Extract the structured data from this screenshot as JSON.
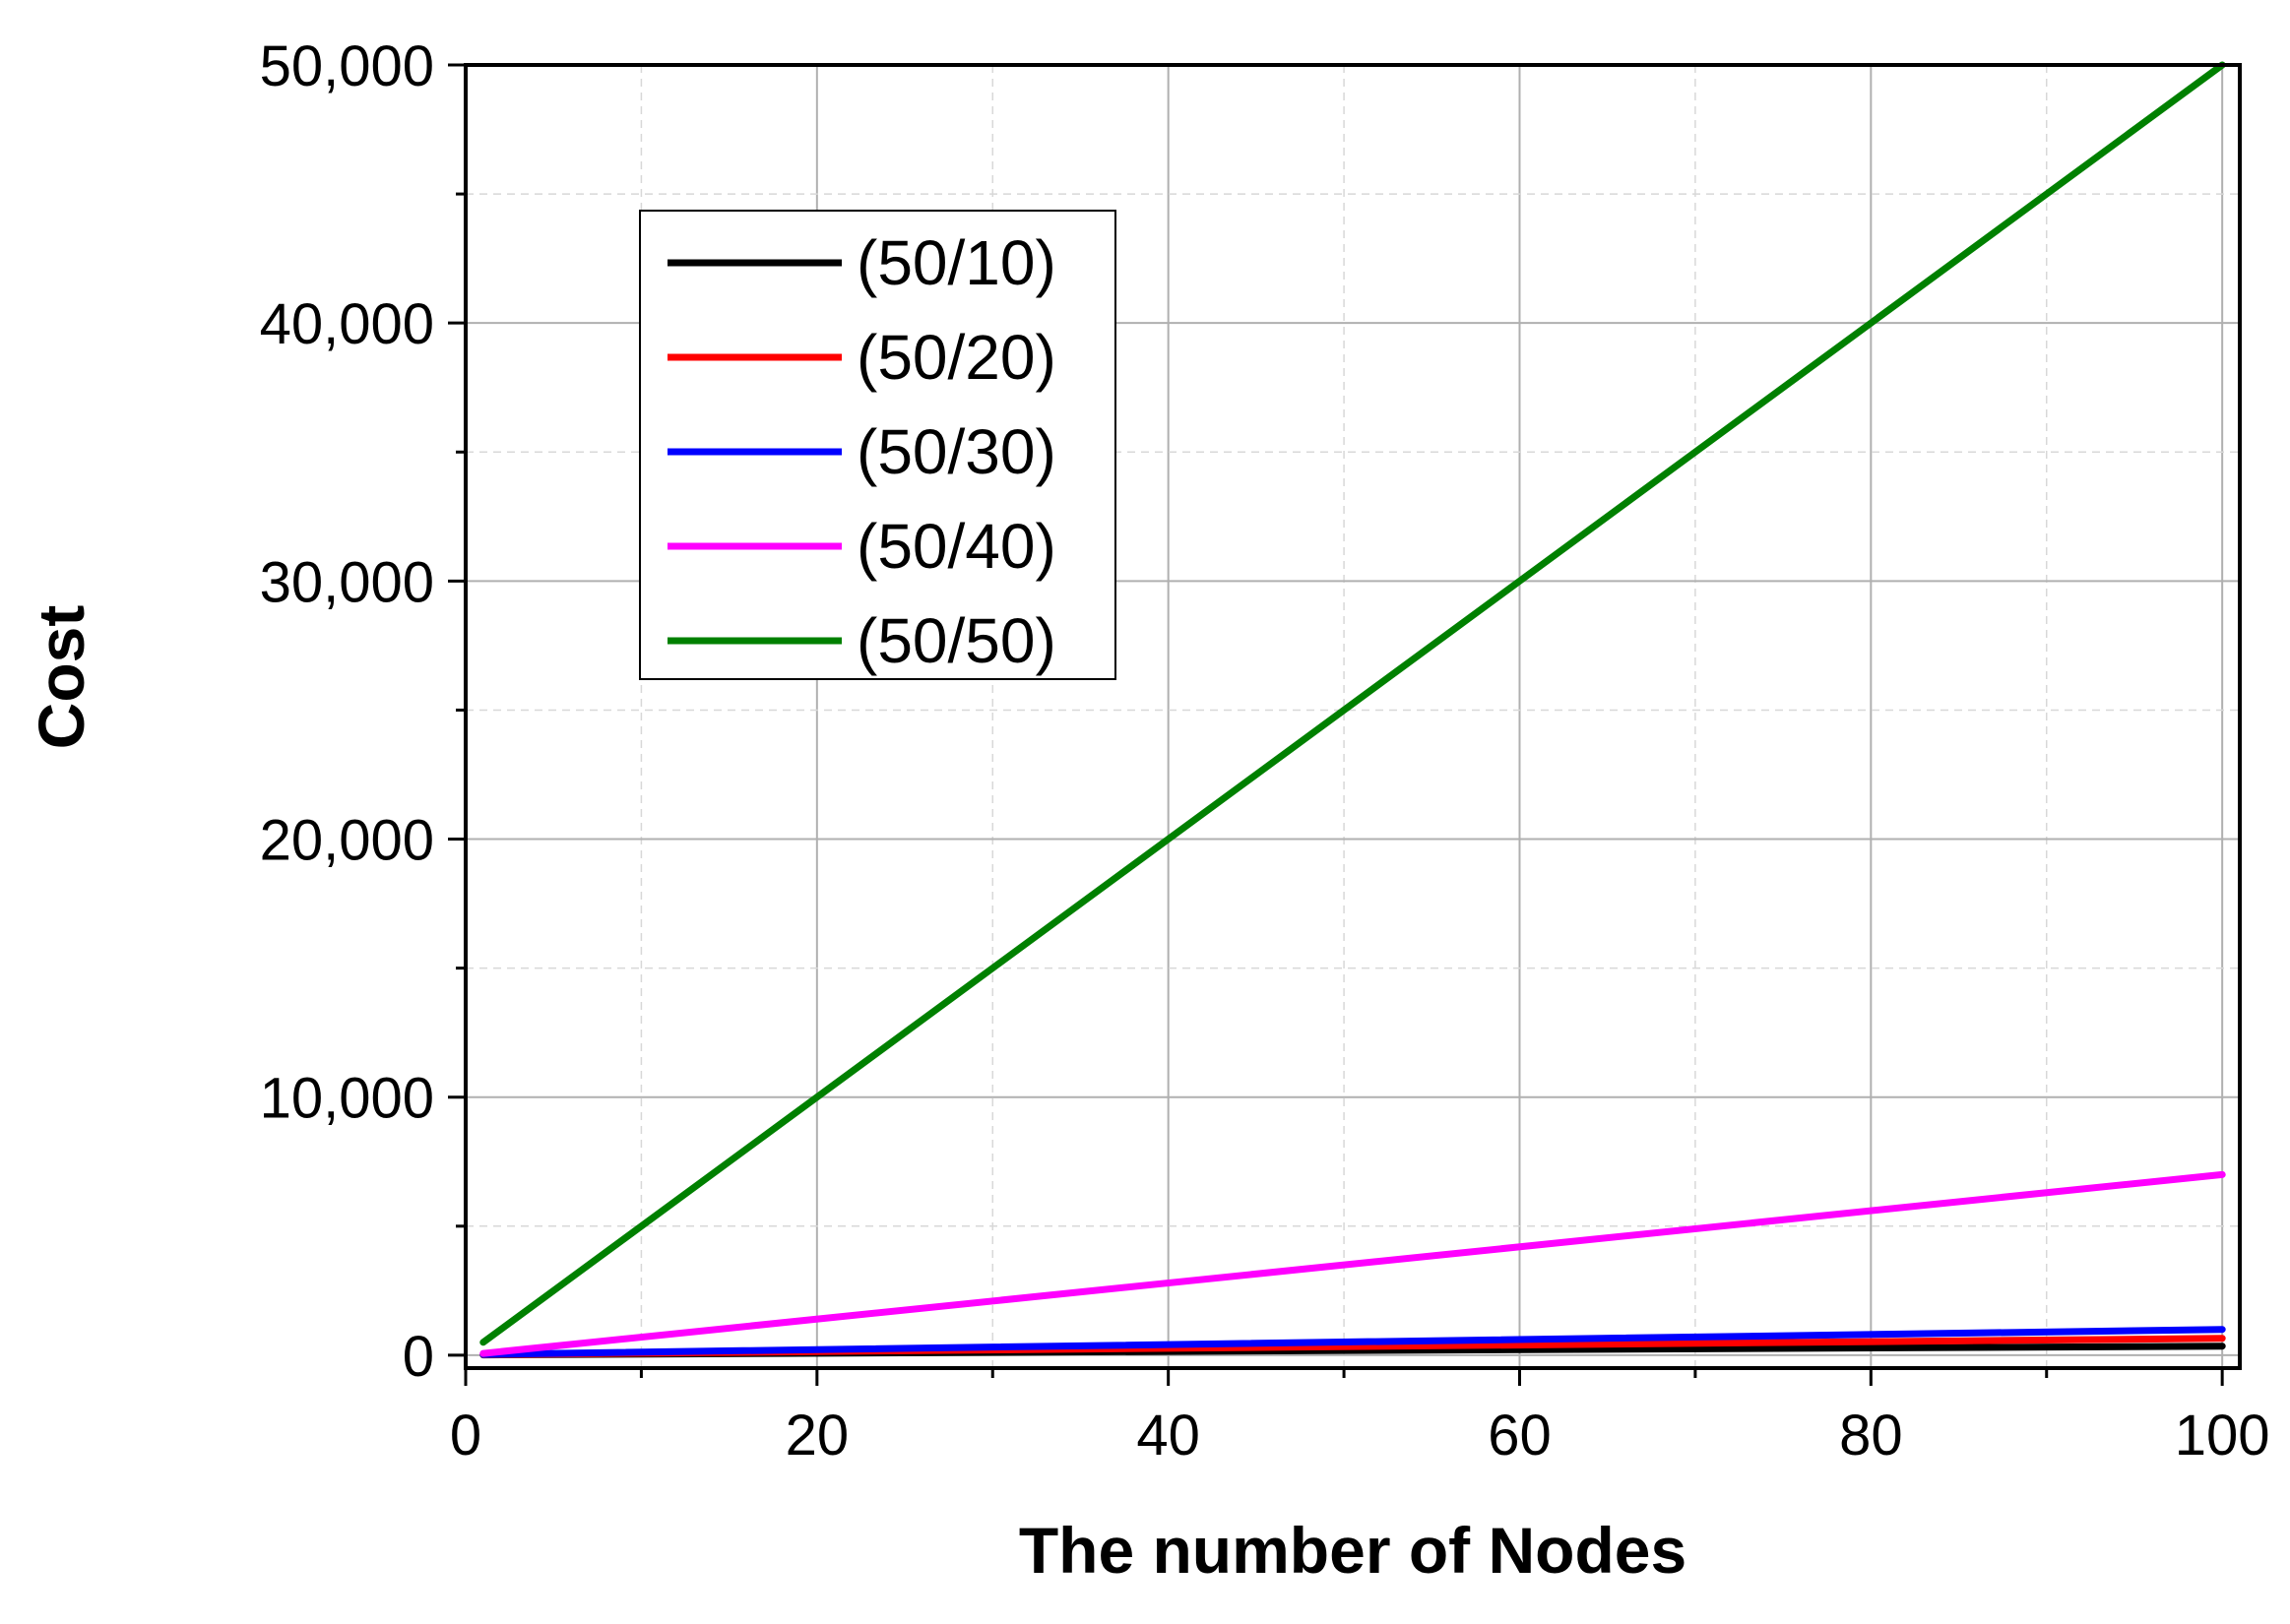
{
  "chart_data": {
    "type": "line",
    "title": "",
    "xlabel": "The number of Nodes",
    "ylabel": "Cost",
    "xlim": [
      0,
      101
    ],
    "ylim": [
      -500,
      50000
    ],
    "x_ticks": [
      0,
      20,
      40,
      60,
      80,
      100
    ],
    "x_tick_labels": [
      "0",
      "20",
      "40",
      "60",
      "80",
      "100"
    ],
    "y_ticks": [
      0,
      10000,
      20000,
      30000,
      40000,
      50000
    ],
    "y_tick_labels": [
      "0",
      "10,000",
      "20,000",
      "30,000",
      "40,000",
      "50,000"
    ],
    "grid": true,
    "legend_position": "top-left",
    "x": [
      1,
      100
    ],
    "series": [
      {
        "name": "(50/10)",
        "color": "#000000",
        "values": [
          10,
          350
        ]
      },
      {
        "name": "(50/20)",
        "color": "#ff0000",
        "values": [
          20,
          650
        ]
      },
      {
        "name": "(50/30)",
        "color": "#0000ff",
        "values": [
          30,
          1000
        ]
      },
      {
        "name": "(50/40)",
        "color": "#ff00ff",
        "values": [
          70,
          7000
        ]
      },
      {
        "name": "(50/50)",
        "color": "#008000",
        "values": [
          500,
          50000
        ]
      }
    ]
  }
}
